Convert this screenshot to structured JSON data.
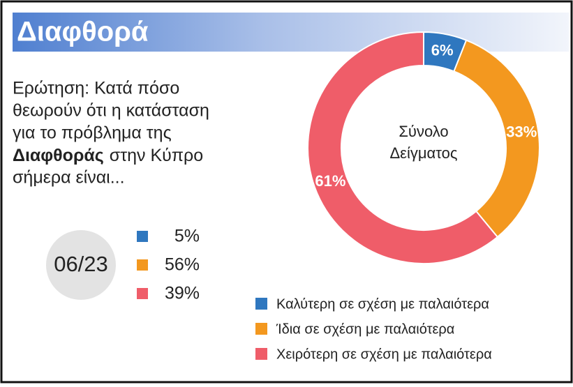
{
  "header": {
    "title": "Διαφθορά"
  },
  "question": {
    "lines": [
      "Ερώτηση: Κατά πόσο",
      "θεωρούν ότι η κατάσταση",
      "για το πρόβλημα της"
    ],
    "emphasis": "Διαφθοράς",
    "after_emphasis": "στην Κύπρο",
    "last_line": "σήμερα είναι..."
  },
  "previous": {
    "label": "06/23",
    "values": [
      5,
      56,
      39
    ],
    "value_labels": [
      "5%",
      "56%",
      "39%"
    ]
  },
  "chart_data": {
    "type": "donut",
    "center_label": [
      "Σύνολο",
      "Δείγματος"
    ],
    "categories": [
      "Καλύτερη σε σχέση με παλαιότερα",
      "Ίδια σε σχέση με παλαιότερα",
      "Χειρότερη σε σχέση με παλαιότερα"
    ],
    "values": [
      6,
      33,
      61
    ],
    "value_labels": [
      "6%",
      "33%",
      "61%"
    ],
    "colors": [
      "#2f77bf",
      "#f3981f",
      "#ef5d69"
    ]
  }
}
